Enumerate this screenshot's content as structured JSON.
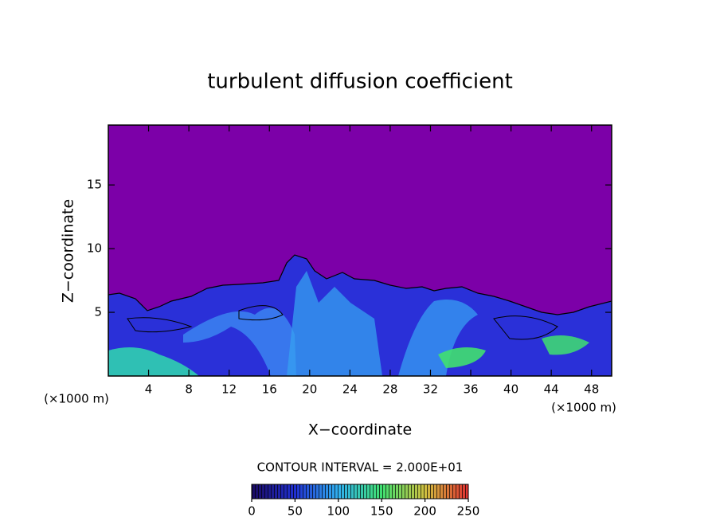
{
  "chart_data": {
    "type": "contour",
    "title": "turbulent diffusion coefficient",
    "x_label": "X−coordinate",
    "y_label": "Z−coordinate",
    "x_unit": "(×1000 m)",
    "y_unit": "(×1000 m)",
    "xlim": [
      0,
      50
    ],
    "xticks": [
      4,
      8,
      12,
      16,
      20,
      24,
      28,
      32,
      36,
      40,
      44,
      48
    ],
    "ylim": [
      0,
      19.7
    ],
    "yticks": [
      5,
      10,
      15
    ],
    "contour_interval": "CONTOUR INTERVAL = 2.000E+01",
    "colorbar": {
      "lim": [
        0,
        250
      ],
      "ticks": [
        0,
        50,
        100,
        150,
        200,
        250
      ]
    }
  }
}
